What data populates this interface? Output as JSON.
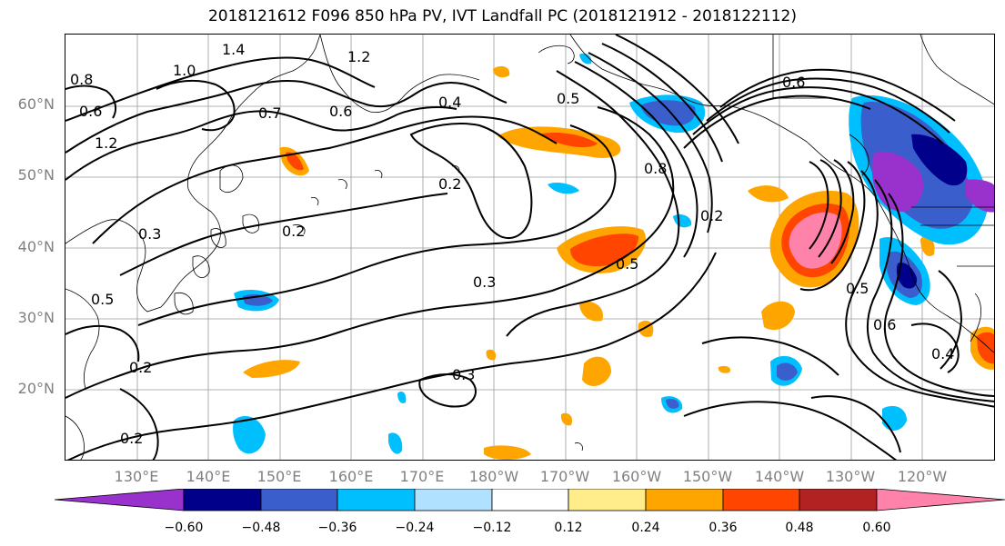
{
  "title": "2018121612 F096 850 hPa PV, IVT Landfall PC (2018121912 - 2018122112)",
  "lat_labels": [
    "60°N",
    "50°N",
    "40°N",
    "30°N",
    "20°N"
  ],
  "lon_labels": [
    "130°E",
    "140°E",
    "150°E",
    "160°E",
    "170°E",
    "180°W",
    "170°W",
    "160°W",
    "150°W",
    "140°W",
    "130°W",
    "120°W"
  ],
  "colorbar": {
    "labels": [
      "−0.60",
      "−0.48",
      "−0.36",
      "−0.24",
      "−0.12",
      "0.12",
      "0.24",
      "0.36",
      "0.48",
      "0.60"
    ],
    "colors": [
      "#9932cc",
      "#00008b",
      "#3a5fcd",
      "#00bfff",
      "#b0e2ff",
      "#ffffff",
      "#ffec8b",
      "#ffa500",
      "#ff4500",
      "#b22222",
      "#ff82ab"
    ]
  },
  "contour_labels": [
    "1.4",
    "1.2",
    "1.0",
    "0.8",
    "0.6",
    "0.7",
    "0.6",
    "0.4",
    "0.5",
    "0.2",
    "0.3",
    "0.2",
    "0.3",
    "0.5",
    "0.2",
    "0.3",
    "0.4",
    "1.2",
    "0.6",
    "0.6",
    "0.5",
    "0.2",
    "0.8",
    "0.2",
    "0.5"
  ]
}
